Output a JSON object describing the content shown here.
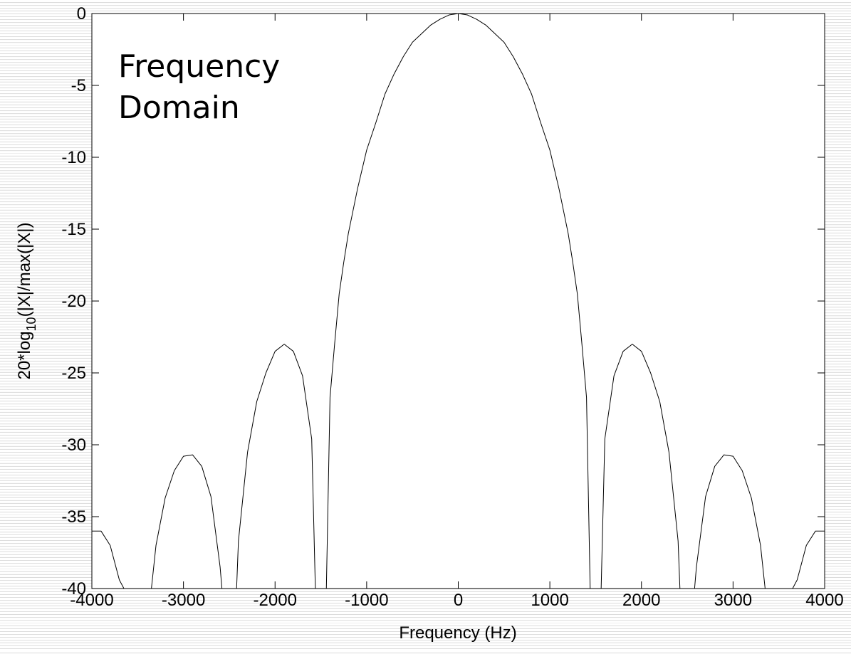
{
  "chart_data": {
    "type": "line",
    "title": "",
    "annotation_lines": [
      "Frequency",
      "Domain"
    ],
    "xlabel": "Frequency (Hz)",
    "ylabel": {
      "prefix": "20*log",
      "subscript": "10",
      "suffix": "(|X|/max(|X|)"
    },
    "xlim": [
      -4000,
      4000
    ],
    "ylim": [
      -40,
      0
    ],
    "xticks": [
      -4000,
      -3000,
      -2000,
      -1000,
      0,
      1000,
      2000,
      3000,
      4000
    ],
    "yticks": [
      0,
      -5,
      -10,
      -15,
      -20,
      -25,
      -30,
      -35,
      -40
    ],
    "grid": false,
    "colors": {
      "line": "#000000",
      "plot_background": "#ffffff"
    },
    "series": [
      {
        "x": [
          -4000,
          -3900,
          -3800,
          -3700,
          -3650,
          -3400,
          -3350,
          -3300,
          -3200,
          -3100,
          -3000,
          -2900,
          -2800,
          -2700,
          -2600,
          -2580,
          -2420,
          -2400,
          -2350,
          -2300,
          -2200,
          -2100,
          -2000,
          -1900,
          -1800,
          -1700,
          -1600,
          -1560,
          -1440,
          -1400,
          -1350,
          -1300,
          -1250,
          -1200,
          -1100,
          -1000,
          -900,
          -800,
          -700,
          -600,
          -500,
          -400,
          -300,
          -200,
          -100,
          0,
          100,
          200,
          300,
          400,
          500,
          600,
          700,
          800,
          900,
          1000,
          1100,
          1200,
          1250,
          1300,
          1350,
          1400,
          1440,
          1560,
          1600,
          1700,
          1800,
          1900,
          2000,
          2100,
          2200,
          2300,
          2350,
          2400,
          2420,
          2580,
          2600,
          2700,
          2800,
          2900,
          3000,
          3100,
          3200,
          3300,
          3350,
          3400,
          3650,
          3700,
          3800,
          3900,
          4000
        ],
        "y": [
          -36,
          -36,
          -37,
          -39.4,
          -40,
          -40,
          -40,
          -37,
          -33.7,
          -31.8,
          -30.8,
          -30.7,
          -31.5,
          -33.6,
          -38.5,
          -40,
          -40,
          -36.7,
          -33.6,
          -30.5,
          -27,
          -25,
          -23.5,
          -23,
          -23.5,
          -25.2,
          -29.6,
          -40,
          -40,
          -26.7,
          -23,
          -19.5,
          -17.3,
          -15.3,
          -12.2,
          -9.5,
          -7.6,
          -5.6,
          -4.2,
          -3.0,
          -2.0,
          -1.4,
          -0.8,
          -0.4,
          -0.1,
          0,
          -0.1,
          -0.4,
          -0.8,
          -1.4,
          -2.0,
          -3.0,
          -4.2,
          -5.6,
          -7.6,
          -9.5,
          -12.2,
          -15.3,
          -17.3,
          -19.5,
          -23,
          -26.7,
          -40,
          -40,
          -29.6,
          -25.2,
          -23.5,
          -23,
          -23.5,
          -25,
          -27,
          -30.5,
          -33.6,
          -36.7,
          -40,
          -40,
          -38.5,
          -33.6,
          -31.5,
          -30.7,
          -30.8,
          -31.8,
          -33.7,
          -37,
          -40,
          -40,
          -40,
          -39.4,
          -37,
          -36,
          -36
        ]
      }
    ]
  }
}
